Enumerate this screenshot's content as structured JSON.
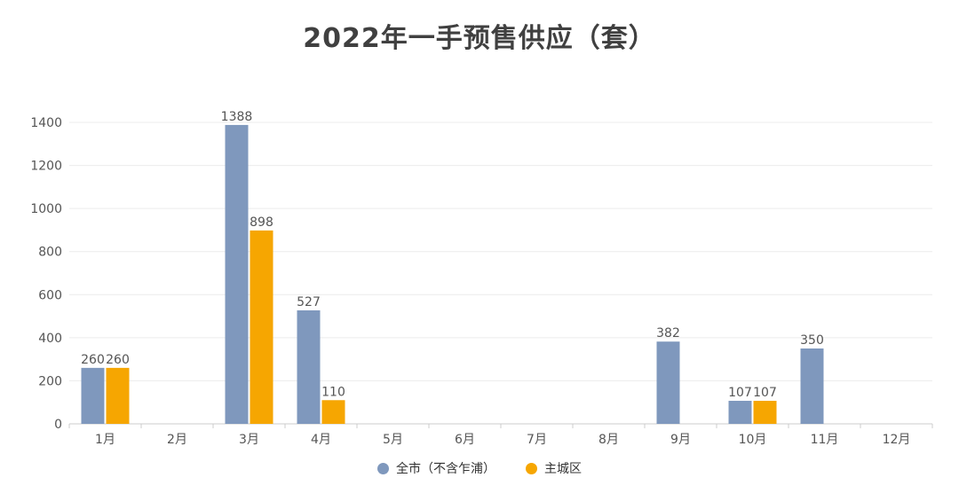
{
  "chart_data": {
    "type": "bar",
    "title": "2022年一手预售供应（套）",
    "categories": [
      "1月",
      "2月",
      "3月",
      "4月",
      "5月",
      "6月",
      "7月",
      "8月",
      "9月",
      "10月",
      "11月",
      "12月"
    ],
    "series": [
      {
        "name": "全市（不含乍浦）",
        "color": "#7f98bd",
        "values": [
          260,
          0,
          1388,
          527,
          0,
          0,
          0,
          0,
          382,
          107,
          350,
          0
        ],
        "labels": [
          "260",
          "",
          "1388",
          "527",
          "",
          "",
          "",
          "",
          "382",
          "107",
          "350",
          ""
        ]
      },
      {
        "name": "主城区",
        "color": "#f6a601",
        "values": [
          260,
          0,
          898,
          110,
          0,
          0,
          0,
          0,
          0,
          107,
          0,
          0
        ],
        "labels": [
          "260",
          "",
          "898",
          "110",
          "",
          "",
          "",
          "",
          "",
          "107",
          "",
          ""
        ]
      }
    ],
    "yticks": [
      "0",
      "200",
      "400",
      "600",
      "800",
      "1000",
      "1200",
      "1400"
    ],
    "ylim": [
      0,
      1400
    ],
    "grid": true,
    "legend_position": "bottom-center"
  }
}
